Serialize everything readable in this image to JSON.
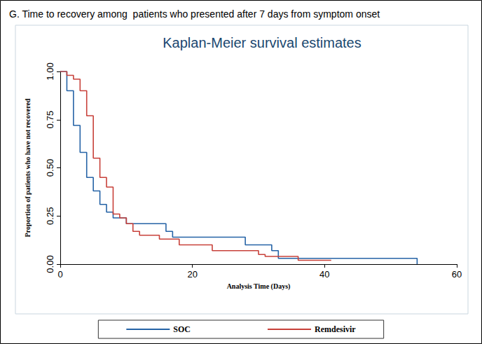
{
  "chart_data": {
    "type": "step",
    "subtitle": "G. Time to recovery among  patients who presented after 7 days from symptom onset",
    "title": "Kaplan-Meier survival estimates",
    "x_label": "Analysis Time (Days)",
    "y_label": "Proportion of patients who have not recovered",
    "xlim": [
      0,
      60
    ],
    "xticks": [
      0,
      20,
      40,
      60
    ],
    "ylim": [
      0,
      1
    ],
    "yticks": [
      {
        "value": 0,
        "label": "0.00"
      },
      {
        "value": 0.25,
        "label": "0.25"
      },
      {
        "value": 0.5,
        "label": "0.50"
      },
      {
        "value": 0.75,
        "label": "0.75"
      },
      {
        "value": 1,
        "label": "1.00"
      }
    ],
    "grid": false,
    "legend": "bottom",
    "series": [
      {
        "name": "SOC",
        "color": "#2563a6",
        "line_style": "solid",
        "x": [
          0,
          1,
          2,
          3,
          4,
          5,
          6,
          7,
          8,
          10,
          16,
          17,
          28,
          32,
          33,
          54
        ],
        "values": [
          1,
          0.9,
          0.72,
          0.58,
          0.45,
          0.38,
          0.31,
          0.27,
          0.24,
          0.21,
          0.17,
          0.14,
          0.1,
          0.07,
          0.03,
          0
        ]
      },
      {
        "name": "Remdesivir",
        "color": "#c8413a",
        "line_style": "solid",
        "x": [
          0,
          1,
          2,
          3,
          4,
          5,
          6,
          7,
          8,
          9,
          10,
          11,
          12,
          15,
          18,
          23,
          30,
          31,
          36,
          41
        ],
        "values": [
          1,
          0.98,
          0.96,
          0.9,
          0.77,
          0.55,
          0.45,
          0.4,
          0.26,
          0.24,
          0.21,
          0.17,
          0.15,
          0.13,
          0.1,
          0.07,
          0.05,
          0.04,
          0.02,
          0.02
        ]
      }
    ]
  }
}
